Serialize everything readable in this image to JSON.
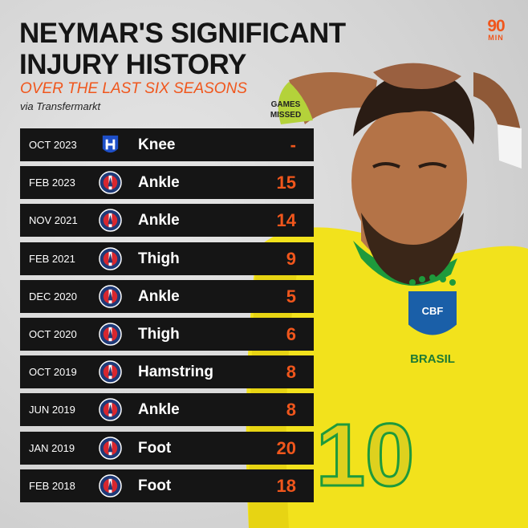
{
  "title": {
    "line1": "NEYMAR'S SIGNIFICANT",
    "line2": "INJURY HISTORY"
  },
  "subtitle": "OVER THE LAST SIX SEASONS",
  "source": "via Transfermarkt",
  "column_header": {
    "line1": "GAMES",
    "line2": "MISSED"
  },
  "brand": {
    "number": "90",
    "word": "MIN"
  },
  "colors": {
    "accent": "#f0561c",
    "row_bg": "#151515",
    "shirt": "#f2e21c"
  },
  "jersey": {
    "crest": "CBF",
    "country": "BRASIL",
    "number": "10"
  },
  "rows": [
    {
      "date": "OCT 2023",
      "club_icon": "al-hilal-crest-icon",
      "injury": "Knee",
      "games": "-"
    },
    {
      "date": "FEB 2023",
      "club_icon": "psg-crest-icon",
      "injury": "Ankle",
      "games": "15"
    },
    {
      "date": "NOV 2021",
      "club_icon": "psg-crest-icon",
      "injury": "Ankle",
      "games": "14"
    },
    {
      "date": "FEB 2021",
      "club_icon": "psg-crest-icon",
      "injury": "Thigh",
      "games": "9"
    },
    {
      "date": "DEC 2020",
      "club_icon": "psg-crest-icon",
      "injury": "Ankle",
      "games": "5"
    },
    {
      "date": "OCT 2020",
      "club_icon": "psg-crest-icon",
      "injury": "Thigh",
      "games": "6"
    },
    {
      "date": "OCT 2019",
      "club_icon": "psg-crest-icon",
      "injury": "Hamstring",
      "games": "8"
    },
    {
      "date": "JUN 2019",
      "club_icon": "psg-crest-icon",
      "injury": "Ankle",
      "games": "8"
    },
    {
      "date": "JAN 2019",
      "club_icon": "psg-crest-icon",
      "injury": "Foot",
      "games": "20"
    },
    {
      "date": "FEB 2018",
      "club_icon": "psg-crest-icon",
      "injury": "Foot",
      "games": "18"
    }
  ]
}
